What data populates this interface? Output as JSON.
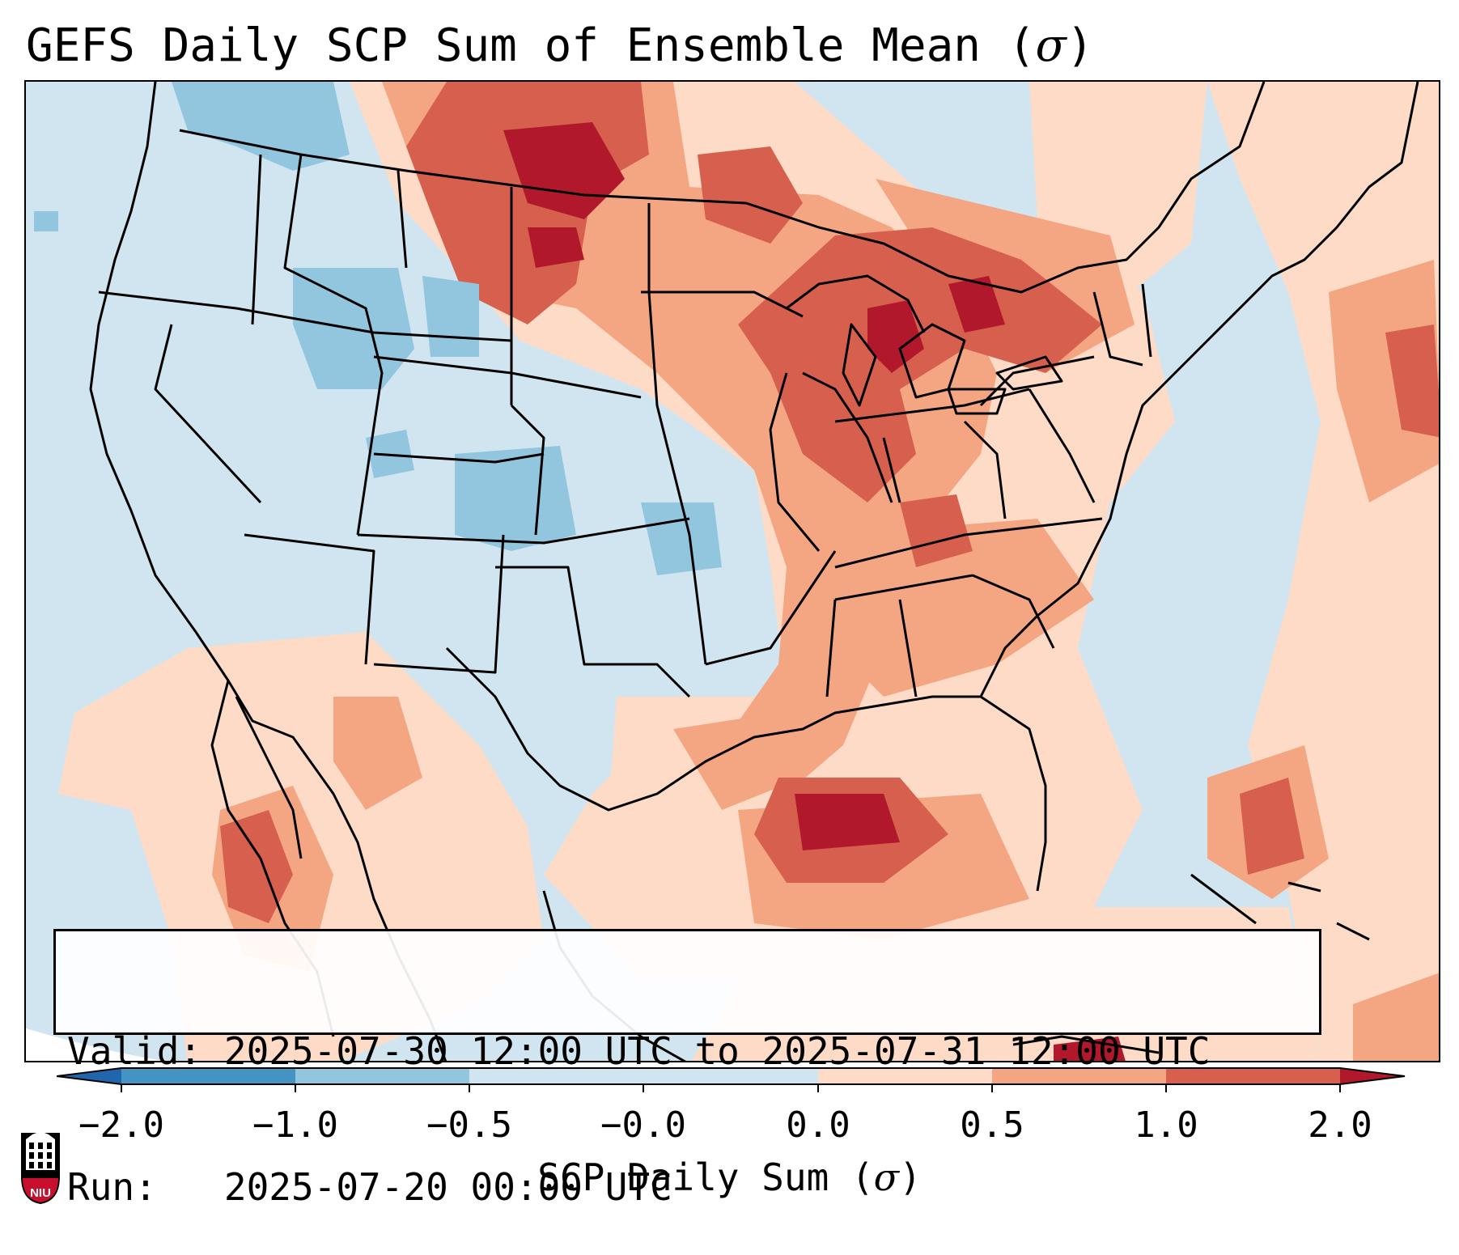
{
  "title": {
    "text": "GEFS Daily SCP Sum of Ensemble Mean (",
    "sigma": "σ",
    "close": ")"
  },
  "infobox": {
    "valid_label": "Valid:",
    "valid_value": "2025-07-30 12:00 UTC to 2025-07-31 12:00 UTC",
    "run_label": "Run:",
    "run_value": "2025-07-20 00:00 UTC"
  },
  "colorbar": {
    "label_text": "SCP Daily Sum (",
    "label_sigma": "σ",
    "label_close": ")",
    "tick_labels": [
      "−2.0",
      "−1.0",
      "−0.5",
      "−0.0",
      "0.0",
      "0.5",
      "1.0",
      "2.0"
    ],
    "bins": [
      {
        "range": "< -2.0",
        "color": "#2166ac"
      },
      {
        "range": "-2.0 to -1.0",
        "color": "#4393c3"
      },
      {
        "range": "-1.0 to -0.5",
        "color": "#92c5de"
      },
      {
        "range": "-0.5 to -0.0",
        "color": "#d1e5f0"
      },
      {
        "range": "-0.0 to 0.0",
        "color": "#f7f7f7"
      },
      {
        "range": "0.0 to 0.5",
        "color": "#fddbc7"
      },
      {
        "range": "0.5 to 1.0",
        "color": "#f4a582"
      },
      {
        "range": "1.0 to 2.0",
        "color": "#d6604d"
      },
      {
        "range": "> 2.0",
        "color": "#b2182b"
      }
    ]
  },
  "logo": {
    "text": "NIU",
    "color": "#c8102e"
  }
}
